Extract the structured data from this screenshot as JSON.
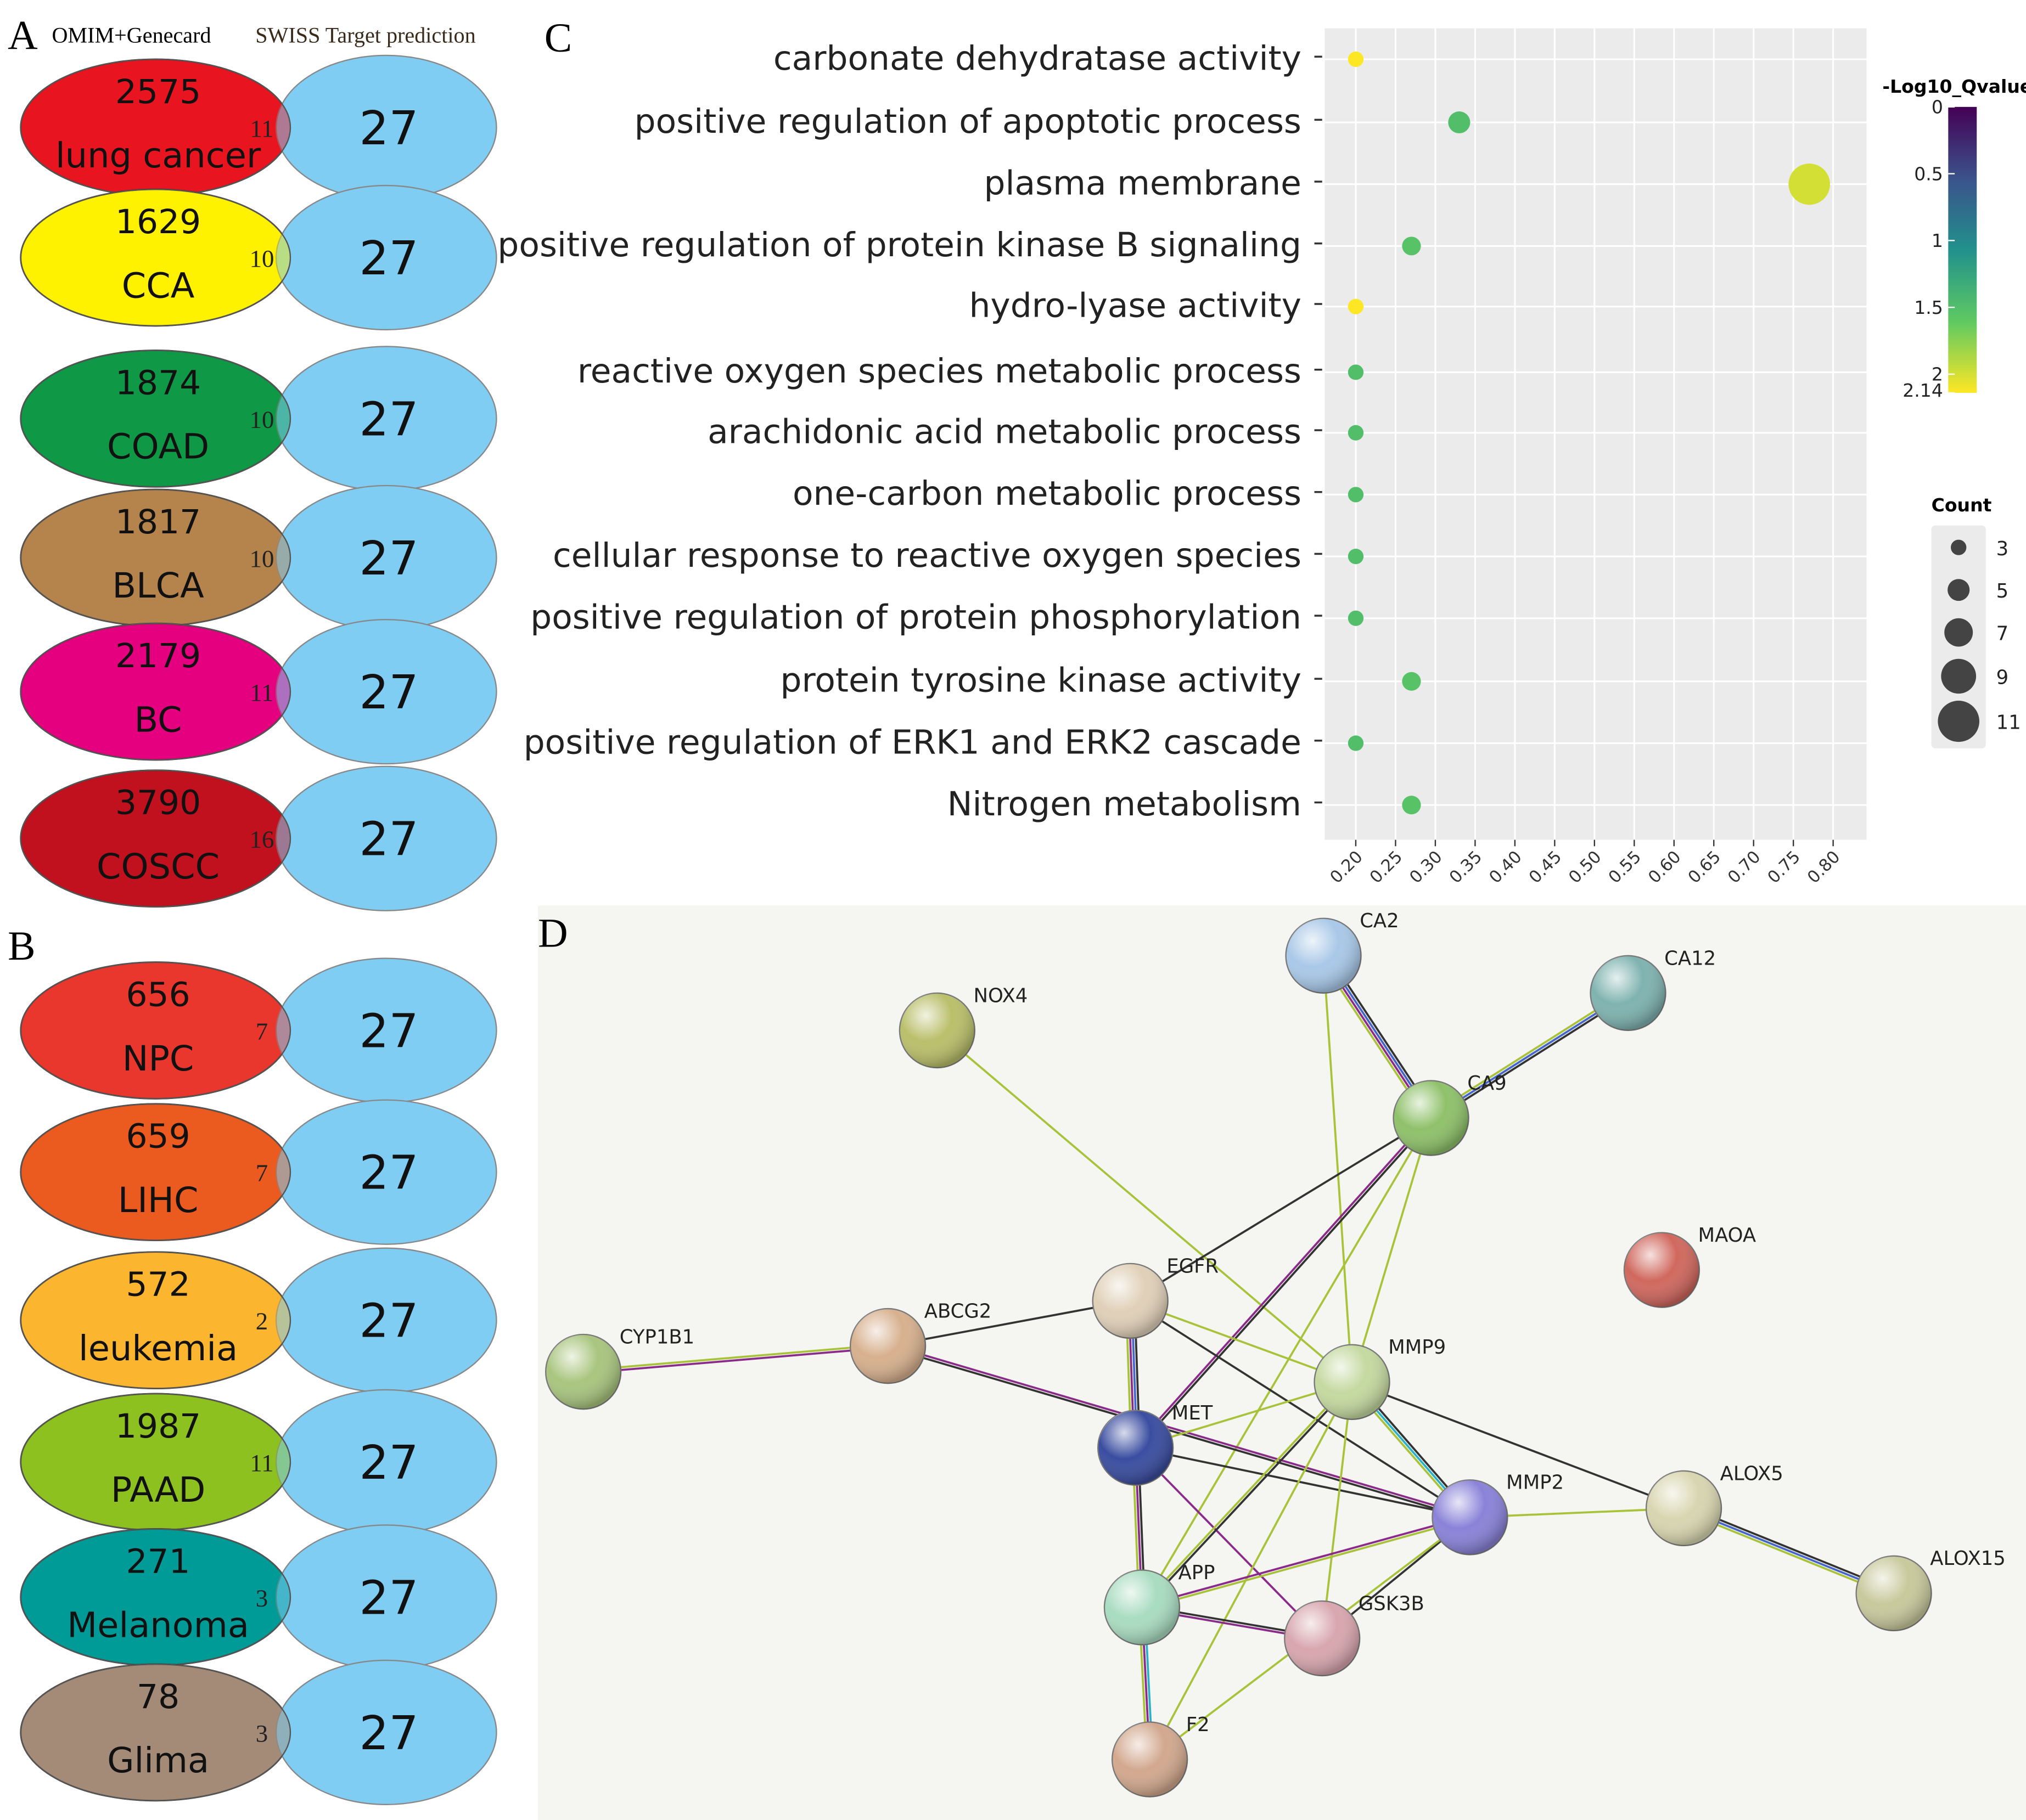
{
  "panel_labels": [
    "A",
    "B",
    "C",
    "D"
  ],
  "venn": {
    "left_title": "OMIM+Genecard",
    "right_title": "SWISS Target prediction",
    "groups": [
      {
        "name": "lung cancer",
        "count": 2575,
        "overlap": 11,
        "targets": 27,
        "color": "#e8141f"
      },
      {
        "name": "CCA",
        "count": 1629,
        "overlap": 10,
        "targets": 27,
        "color": "#fff200"
      },
      {
        "name": "COAD",
        "count": 1874,
        "overlap": 10,
        "targets": 27,
        "color": "#0f9a46"
      },
      {
        "name": "BLCA",
        "count": 1817,
        "overlap": 10,
        "targets": 27,
        "color": "#b5844e"
      },
      {
        "name": "BC",
        "count": 2179,
        "overlap": 11,
        "targets": 27,
        "color": "#e4007f"
      },
      {
        "name": "COSCC",
        "count": 3790,
        "overlap": 16,
        "targets": 27,
        "color": "#c1121f"
      },
      {
        "name": "NPC",
        "count": 656,
        "overlap": 7,
        "targets": 27,
        "color": "#e9372f"
      },
      {
        "name": "LIHC",
        "count": 659,
        "overlap": 7,
        "targets": 27,
        "color": "#eb5a1e"
      },
      {
        "name": "leukemia",
        "count": 572,
        "overlap": 2,
        "targets": 27,
        "color": "#fbb52e"
      },
      {
        "name": "PAAD",
        "count": 1987,
        "overlap": 11,
        "targets": 27,
        "color": "#8dc21f"
      },
      {
        "name": "Melanoma",
        "count": 271,
        "overlap": 3,
        "targets": 27,
        "color": "#009b96"
      },
      {
        "name": "Glima",
        "count": 78,
        "overlap": 3,
        "targets": 27,
        "color": "#a58b78"
      }
    ],
    "right_color": "#7fcdf3"
  },
  "chart_data": {
    "type": "scatter",
    "categories": [
      "carbonate dehydratase activity",
      "positive regulation of apoptotic process",
      "plasma membrane",
      "positive regulation of protein kinase  B signaling",
      "hydro-lyase activity",
      "reactive oxygen species metabolic process",
      "arachidonic acid metabolic process",
      "one-carbon metabolic process",
      "cellular response to reactive oxygen species",
      "positive regulation of protein phosphorylation",
      "protein tyrosine kinase activity",
      "positive regulation of ERK1 and ERK2 cascade",
      "Nitrogen metabolism"
    ],
    "values": [
      0.2,
      0.33,
      0.77,
      0.27,
      0.2,
      0.2,
      0.2,
      0.2,
      0.2,
      0.2,
      0.27,
      0.2,
      0.27
    ],
    "sizes": [
      3,
      5,
      11,
      4,
      3,
      3,
      3,
      3,
      3,
      3,
      4,
      3,
      4
    ],
    "qvalues": [
      2.14,
      1.5,
      2.0,
      1.55,
      2.14,
      1.5,
      1.5,
      1.5,
      1.5,
      1.5,
      1.55,
      1.5,
      1.55
    ],
    "xlim": [
      0.161,
      0.842
    ],
    "xticks": [
      {
        "value": 0.2,
        "label": "0.20"
      },
      {
        "value": 0.25,
        "label": "0.25"
      },
      {
        "value": 0.3,
        "label": "0.30"
      },
      {
        "value": 0.35,
        "label": "0.35"
      },
      {
        "value": 0.4,
        "label": "0.40"
      },
      {
        "value": 0.45,
        "label": "0.45"
      },
      {
        "value": 0.5,
        "label": "0.50"
      },
      {
        "value": 0.55,
        "label": "0.55"
      },
      {
        "value": 0.6,
        "label": "0.60"
      },
      {
        "value": 0.65,
        "label": "0.65"
      },
      {
        "value": 0.7,
        "label": "0.70"
      },
      {
        "value": 0.75,
        "label": "0.75"
      },
      {
        "value": 0.8,
        "label": "0.80"
      }
    ],
    "grid": true,
    "color_legend_title": "-Log10_Qvalue",
    "colorlim": [
      0,
      2.14
    ],
    "colorticks": [
      0,
      0.5,
      1,
      1.5,
      2,
      2.14
    ],
    "size_legend_title": "Count",
    "size_legend": [
      3,
      5,
      7,
      9,
      11
    ]
  },
  "network": {
    "nodes": [
      {
        "label": "CA2",
        "color": "#a9c8e8"
      },
      {
        "label": "CA12",
        "color": "#7fb3b0"
      },
      {
        "label": "NOX4",
        "color": "#b9bf6a"
      },
      {
        "label": "CA9",
        "color": "#8fc16a"
      },
      {
        "label": "MAOA",
        "color": "#d0685e"
      },
      {
        "label": "EGFR",
        "color": "#e0d0b8"
      },
      {
        "label": "ABCG2",
        "color": "#d7b08e"
      },
      {
        "label": "CYP1B1",
        "color": "#a9c57f"
      },
      {
        "label": "MMP9",
        "color": "#c4d9a0"
      },
      {
        "label": "MET",
        "color": "#3a4da0"
      },
      {
        "label": "MMP2",
        "color": "#8a82d8"
      },
      {
        "label": "ALOX5",
        "color": "#d8d6b0"
      },
      {
        "label": "ALOX15",
        "color": "#c8c99c"
      },
      {
        "label": "APP",
        "color": "#a9dcc0"
      },
      {
        "label": "GSK3B",
        "color": "#d8a6ae"
      },
      {
        "label": "F2",
        "color": "#d2a88e"
      }
    ]
  }
}
